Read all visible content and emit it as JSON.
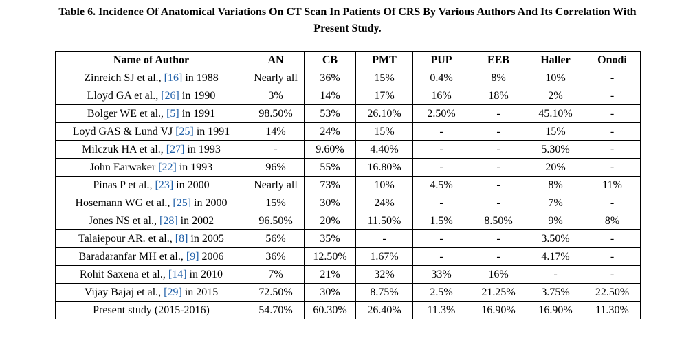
{
  "caption": {
    "line1": "Table 6. Incidence Of Anatomical Variations On CT Scan In Patients Of CRS By Various Authors And Its Correlation With",
    "line2": "Present Study."
  },
  "table": {
    "columns": [
      "Name of Author",
      "AN",
      "CB",
      "PMT",
      "PUP",
      "EEB",
      "Haller",
      "Onodi"
    ],
    "rows": [
      {
        "author_pre": "Zinreich SJ et al., ",
        "ref": "[16]",
        "author_post": " in 1988",
        "values": [
          "Nearly all",
          "36%",
          "15%",
          "0.4%",
          "8%",
          "10%",
          "-"
        ]
      },
      {
        "author_pre": "Lloyd GA et al., ",
        "ref": "[26]",
        "author_post": " in 1990",
        "values": [
          "3%",
          "14%",
          "17%",
          "16%",
          "18%",
          "2%",
          "-"
        ]
      },
      {
        "author_pre": "Bolger WE et al., ",
        "ref": "[5]",
        "author_post": " in 1991",
        "values": [
          "98.50%",
          "53%",
          "26.10%",
          "2.50%",
          "-",
          "45.10%",
          "-"
        ]
      },
      {
        "author_pre": "Loyd GAS &  Lund VJ ",
        "ref": "[25]",
        "author_post": " in 1991",
        "values": [
          "14%",
          "24%",
          "15%",
          "-",
          "-",
          "15%",
          "-"
        ]
      },
      {
        "author_pre": "Milczuk HA et al., ",
        "ref": "[27]",
        "author_post": " in 1993",
        "values": [
          "-",
          "9.60%",
          "4.40%",
          "-",
          "-",
          "5.30%",
          "-"
        ]
      },
      {
        "author_pre": "John Earwaker ",
        "ref": "[22]",
        "author_post": " in 1993",
        "values": [
          "96%",
          "55%",
          "16.80%",
          "-",
          "-",
          "20%",
          "-"
        ]
      },
      {
        "author_pre": "Pinas P et al., ",
        "ref": "[23]",
        "author_post": " in 2000",
        "values": [
          "Nearly all",
          "73%",
          "10%",
          "4.5%",
          "-",
          "8%",
          "11%"
        ]
      },
      {
        "author_pre": "Hosemann WG et al., ",
        "ref": "[25]",
        "author_post": " in 2000",
        "values": [
          "15%",
          "30%",
          "24%",
          "-",
          "-",
          "7%",
          "-"
        ]
      },
      {
        "author_pre": "Jones NS et al., ",
        "ref": "[28]",
        "author_post": " in 2002",
        "values": [
          "96.50%",
          "20%",
          "11.50%",
          "1.5%",
          "8.50%",
          "9%",
          "8%"
        ]
      },
      {
        "author_pre": "Talaiepour AR. et al., ",
        "ref": "[8]",
        "author_post": " in 2005",
        "values": [
          "56%",
          "35%",
          "-",
          "-",
          "-",
          "3.50%",
          "-"
        ]
      },
      {
        "author_pre": "Baradaranfar MH et al., ",
        "ref": "[9]",
        "author_post": " 2006",
        "values": [
          "36%",
          "12.50%",
          "1.67%",
          "-",
          "-",
          "4.17%",
          "-"
        ]
      },
      {
        "author_pre": "Rohit Saxena et al., ",
        "ref": "[14]",
        "author_post": " in 2010",
        "values": [
          "7%",
          "21%",
          "32%",
          "33%",
          "16%",
          "-",
          "-"
        ]
      },
      {
        "author_pre": "Vijay Bajaj et al., ",
        "ref": "[29]",
        "author_post": " in 2015",
        "values": [
          "72.50%",
          "30%",
          "8.75%",
          "2.5%",
          "21.25%",
          "3.75%",
          "22.50%"
        ]
      },
      {
        "author_pre": "Present study (2015-2016)",
        "ref": "",
        "author_post": "",
        "values": [
          "54.70%",
          "60.30%",
          "26.40%",
          "11.3%",
          "16.90%",
          "16.90%",
          "11.30%"
        ]
      }
    ]
  },
  "colors": {
    "text": "#000000",
    "reference_link": "#1f5fa8",
    "border": "#000000",
    "background": "#ffffff"
  }
}
